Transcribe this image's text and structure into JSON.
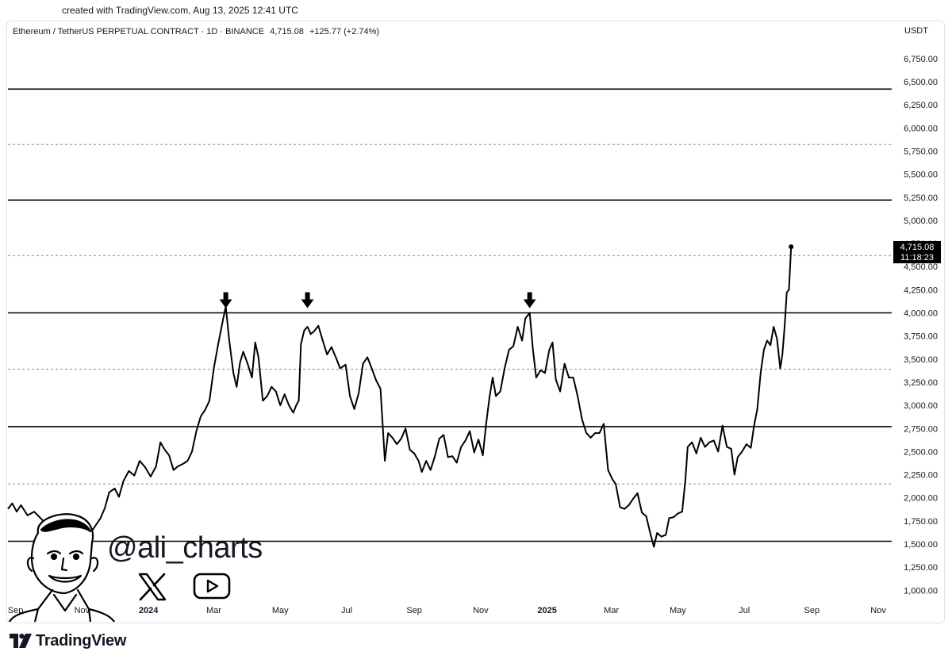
{
  "created_by": "created with TradingView.com, Aug 13, 2025 12:41 UTC",
  "header": {
    "symbol": "Ethereum / TetherUS PERPETUAL CONTRACT · 1D · BINANCE",
    "price": "4,715.08",
    "change": "+125.77 (+2.74%)"
  },
  "currency": "USDT",
  "last_price": {
    "price": "4,715.08",
    "countdown": "11:18:23",
    "value": 4715.08
  },
  "watermark": {
    "handle": "@ali_charts",
    "icons": [
      "person-caricature-icon",
      "x-logo-icon",
      "youtube-play-icon"
    ]
  },
  "brand": {
    "name": "TradingView",
    "icon": "tradingview-logo-icon"
  },
  "chart_data": {
    "type": "line",
    "title": "",
    "xlabel": "",
    "ylabel": "",
    "ylim": [
      800,
      6900
    ],
    "xlim": [
      "2023-08-25",
      "2025-11-25"
    ],
    "y_ticks": [
      "6,750.00",
      "6,500.00",
      "6,250.00",
      "6,000.00",
      "5,750.00",
      "5,500.00",
      "5,250.00",
      "5,000.00",
      "4,750.00",
      "4,500.00",
      "4,250.00",
      "4,000.00",
      "3,750.00",
      "3,500.00",
      "3,250.00",
      "3,000.00",
      "2,750.00",
      "2,500.00",
      "2,250.00",
      "2,000.00",
      "1,750.00",
      "1,500.00",
      "1,250.00",
      "1,000.00"
    ],
    "y_tick_values": [
      6750,
      6500,
      6250,
      6000,
      5750,
      5500,
      5250,
      5000,
      4750,
      4500,
      4250,
      4000,
      3750,
      3500,
      3250,
      3000,
      2750,
      2500,
      2250,
      2000,
      1750,
      1500,
      1250,
      1000
    ],
    "x_ticks": [
      {
        "label": "Sep",
        "date": "2023-09-01",
        "bold": false
      },
      {
        "label": "Nov",
        "date": "2023-11-01",
        "bold": false
      },
      {
        "label": "2024",
        "date": "2024-01-01",
        "bold": true
      },
      {
        "label": "Mar",
        "date": "2024-03-01",
        "bold": false
      },
      {
        "label": "May",
        "date": "2024-05-01",
        "bold": false
      },
      {
        "label": "Jul",
        "date": "2024-07-01",
        "bold": false
      },
      {
        "label": "Sep",
        "date": "2024-09-01",
        "bold": false
      },
      {
        "label": "Nov",
        "date": "2024-11-01",
        "bold": false
      },
      {
        "label": "2025",
        "date": "2025-01-01",
        "bold": true
      },
      {
        "label": "Mar",
        "date": "2025-03-01",
        "bold": false
      },
      {
        "label": "May",
        "date": "2025-05-01",
        "bold": false
      },
      {
        "label": "Jul",
        "date": "2025-07-01",
        "bold": false
      },
      {
        "label": "Sep",
        "date": "2025-09-01",
        "bold": false
      },
      {
        "label": "Nov",
        "date": "2025-11-01",
        "bold": false
      }
    ],
    "horizontal_lines": [
      {
        "value": 6420,
        "style": "solid"
      },
      {
        "value": 5820,
        "style": "dashed"
      },
      {
        "value": 5220,
        "style": "solid"
      },
      {
        "value": 4620,
        "style": "dashed"
      },
      {
        "value": 4000,
        "style": "solid"
      },
      {
        "value": 3390,
        "style": "dashed"
      },
      {
        "value": 2770,
        "style": "solid"
      },
      {
        "value": 2150,
        "style": "dashed"
      },
      {
        "value": 1530,
        "style": "solid"
      }
    ],
    "arrows": [
      {
        "date": "2024-03-12",
        "value": 4000
      },
      {
        "date": "2024-05-26",
        "value": 4000
      },
      {
        "date": "2024-12-16",
        "value": 4000
      }
    ],
    "series": [
      {
        "color": "#000000",
        "points": [
          [
            "2023-08-25",
            1880
          ],
          [
            "2023-08-29",
            1940
          ],
          [
            "2023-09-02",
            1850
          ],
          [
            "2023-09-06",
            1920
          ],
          [
            "2023-09-12",
            1810
          ],
          [
            "2023-09-18",
            1850
          ],
          [
            "2023-09-24",
            1780
          ],
          [
            "2023-09-30",
            1700
          ],
          [
            "2023-10-05",
            1660
          ],
          [
            "2023-10-10",
            1600
          ],
          [
            "2023-10-16",
            1580
          ],
          [
            "2023-10-22",
            1620
          ],
          [
            "2023-10-28",
            1650
          ],
          [
            "2023-11-02",
            1560
          ],
          [
            "2023-11-06",
            1720
          ],
          [
            "2023-11-10",
            1640
          ],
          [
            "2023-11-14",
            1710
          ],
          [
            "2023-11-18",
            1780
          ],
          [
            "2023-11-22",
            1890
          ],
          [
            "2023-11-26",
            2060
          ],
          [
            "2023-12-01",
            2100
          ],
          [
            "2023-12-05",
            2010
          ],
          [
            "2023-12-09",
            2180
          ],
          [
            "2023-12-14",
            2290
          ],
          [
            "2023-12-19",
            2240
          ],
          [
            "2023-12-24",
            2400
          ],
          [
            "2023-12-29",
            2330
          ],
          [
            "2024-01-03",
            2230
          ],
          [
            "2024-01-08",
            2340
          ],
          [
            "2024-01-12",
            2600
          ],
          [
            "2024-01-16",
            2520
          ],
          [
            "2024-01-20",
            2460
          ],
          [
            "2024-01-24",
            2300
          ],
          [
            "2024-01-28",
            2340
          ],
          [
            "2024-02-02",
            2370
          ],
          [
            "2024-02-06",
            2400
          ],
          [
            "2024-02-10",
            2500
          ],
          [
            "2024-02-14",
            2720
          ],
          [
            "2024-02-18",
            2880
          ],
          [
            "2024-02-22",
            2950
          ],
          [
            "2024-02-26",
            3050
          ],
          [
            "2024-03-01",
            3400
          ],
          [
            "2024-03-05",
            3660
          ],
          [
            "2024-03-09",
            3900
          ],
          [
            "2024-03-12",
            4070
          ],
          [
            "2024-03-15",
            3720
          ],
          [
            "2024-03-19",
            3350
          ],
          [
            "2024-03-22",
            3200
          ],
          [
            "2024-03-25",
            3460
          ],
          [
            "2024-03-28",
            3580
          ],
          [
            "2024-04-01",
            3450
          ],
          [
            "2024-04-05",
            3300
          ],
          [
            "2024-04-08",
            3680
          ],
          [
            "2024-04-11",
            3520
          ],
          [
            "2024-04-15",
            3050
          ],
          [
            "2024-04-19",
            3100
          ],
          [
            "2024-04-23",
            3200
          ],
          [
            "2024-04-27",
            3150
          ],
          [
            "2024-05-01",
            3000
          ],
          [
            "2024-05-05",
            3120
          ],
          [
            "2024-05-09",
            3000
          ],
          [
            "2024-05-13",
            2920
          ],
          [
            "2024-05-16",
            3010
          ],
          [
            "2024-05-18",
            3050
          ],
          [
            "2024-05-20",
            3660
          ],
          [
            "2024-05-23",
            3810
          ],
          [
            "2024-05-26",
            3850
          ],
          [
            "2024-05-29",
            3770
          ],
          [
            "2024-06-01",
            3800
          ],
          [
            "2024-06-05",
            3860
          ],
          [
            "2024-06-09",
            3700
          ],
          [
            "2024-06-13",
            3550
          ],
          [
            "2024-06-17",
            3630
          ],
          [
            "2024-06-21",
            3520
          ],
          [
            "2024-06-25",
            3400
          ],
          [
            "2024-06-30",
            3440
          ],
          [
            "2024-07-04",
            3100
          ],
          [
            "2024-07-08",
            2960
          ],
          [
            "2024-07-12",
            3130
          ],
          [
            "2024-07-16",
            3450
          ],
          [
            "2024-07-20",
            3520
          ],
          [
            "2024-07-24",
            3400
          ],
          [
            "2024-07-28",
            3270
          ],
          [
            "2024-08-01",
            3180
          ],
          [
            "2024-08-05",
            2400
          ],
          [
            "2024-08-08",
            2700
          ],
          [
            "2024-08-12",
            2650
          ],
          [
            "2024-08-16",
            2580
          ],
          [
            "2024-08-20",
            2640
          ],
          [
            "2024-08-24",
            2750
          ],
          [
            "2024-08-28",
            2520
          ],
          [
            "2024-09-01",
            2480
          ],
          [
            "2024-09-05",
            2400
          ],
          [
            "2024-09-08",
            2280
          ],
          [
            "2024-09-12",
            2400
          ],
          [
            "2024-09-16",
            2300
          ],
          [
            "2024-09-20",
            2450
          ],
          [
            "2024-09-24",
            2640
          ],
          [
            "2024-09-28",
            2680
          ],
          [
            "2024-10-02",
            2440
          ],
          [
            "2024-10-06",
            2450
          ],
          [
            "2024-10-10",
            2380
          ],
          [
            "2024-10-14",
            2550
          ],
          [
            "2024-10-18",
            2620
          ],
          [
            "2024-10-22",
            2720
          ],
          [
            "2024-10-26",
            2490
          ],
          [
            "2024-10-30",
            2630
          ],
          [
            "2024-11-03",
            2460
          ],
          [
            "2024-11-06",
            2800
          ],
          [
            "2024-11-09",
            3080
          ],
          [
            "2024-11-12",
            3300
          ],
          [
            "2024-11-15",
            3100
          ],
          [
            "2024-11-19",
            3150
          ],
          [
            "2024-11-23",
            3400
          ],
          [
            "2024-11-27",
            3600
          ],
          [
            "2024-12-01",
            3640
          ],
          [
            "2024-12-05",
            3850
          ],
          [
            "2024-12-09",
            3700
          ],
          [
            "2024-12-12",
            3940
          ],
          [
            "2024-12-16",
            4000
          ],
          [
            "2024-12-19",
            3600
          ],
          [
            "2024-12-22",
            3300
          ],
          [
            "2024-12-26",
            3380
          ],
          [
            "2024-12-30",
            3350
          ],
          [
            "2025-01-03",
            3600
          ],
          [
            "2025-01-06",
            3680
          ],
          [
            "2025-01-09",
            3280
          ],
          [
            "2025-01-13",
            3150
          ],
          [
            "2025-01-17",
            3450
          ],
          [
            "2025-01-21",
            3300
          ],
          [
            "2025-01-25",
            3300
          ],
          [
            "2025-01-29",
            3100
          ],
          [
            "2025-02-02",
            2850
          ],
          [
            "2025-02-06",
            2700
          ],
          [
            "2025-02-10",
            2650
          ],
          [
            "2025-02-14",
            2700
          ],
          [
            "2025-02-18",
            2700
          ],
          [
            "2025-02-22",
            2800
          ],
          [
            "2025-02-26",
            2300
          ],
          [
            "2025-03-02",
            2200
          ],
          [
            "2025-03-05",
            2150
          ],
          [
            "2025-03-09",
            1900
          ],
          [
            "2025-03-13",
            1880
          ],
          [
            "2025-03-17",
            1920
          ],
          [
            "2025-03-21",
            1990
          ],
          [
            "2025-03-25",
            2050
          ],
          [
            "2025-03-29",
            1840
          ],
          [
            "2025-04-02",
            1800
          ],
          [
            "2025-04-06",
            1600
          ],
          [
            "2025-04-09",
            1470
          ],
          [
            "2025-04-12",
            1620
          ],
          [
            "2025-04-16",
            1580
          ],
          [
            "2025-04-20",
            1600
          ],
          [
            "2025-04-23",
            1780
          ],
          [
            "2025-04-27",
            1790
          ],
          [
            "2025-05-01",
            1830
          ],
          [
            "2025-05-05",
            1850
          ],
          [
            "2025-05-08",
            2200
          ],
          [
            "2025-05-10",
            2550
          ],
          [
            "2025-05-14",
            2600
          ],
          [
            "2025-05-18",
            2480
          ],
          [
            "2025-05-22",
            2650
          ],
          [
            "2025-05-26",
            2550
          ],
          [
            "2025-05-30",
            2600
          ],
          [
            "2025-06-03",
            2620
          ],
          [
            "2025-06-07",
            2500
          ],
          [
            "2025-06-11",
            2780
          ],
          [
            "2025-06-15",
            2550
          ],
          [
            "2025-06-19",
            2530
          ],
          [
            "2025-06-22",
            2250
          ],
          [
            "2025-06-25",
            2440
          ],
          [
            "2025-06-29",
            2500
          ],
          [
            "2025-07-03",
            2580
          ],
          [
            "2025-07-07",
            2540
          ],
          [
            "2025-07-10",
            2780
          ],
          [
            "2025-07-13",
            2960
          ],
          [
            "2025-07-16",
            3350
          ],
          [
            "2025-07-19",
            3600
          ],
          [
            "2025-07-22",
            3700
          ],
          [
            "2025-07-25",
            3650
          ],
          [
            "2025-07-28",
            3850
          ],
          [
            "2025-07-31",
            3720
          ],
          [
            "2025-08-03",
            3400
          ],
          [
            "2025-08-05",
            3550
          ],
          [
            "2025-08-07",
            3850
          ],
          [
            "2025-08-09",
            4220
          ],
          [
            "2025-08-11",
            4250
          ],
          [
            "2025-08-13",
            4715
          ]
        ]
      }
    ]
  }
}
